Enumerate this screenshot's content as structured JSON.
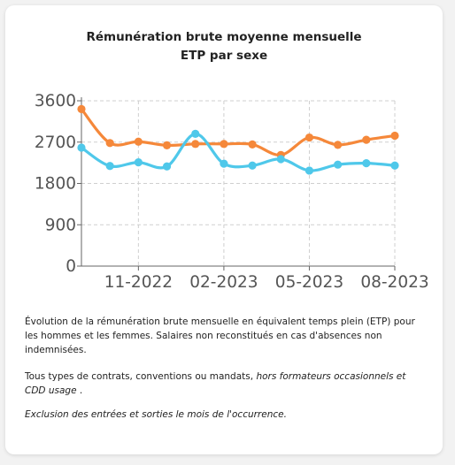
{
  "title": "Rémunération brute moyenne mensuelle",
  "subtitle": "ETP par sexe",
  "description": {
    "para1": "Évolution de la rémunération brute mensuelle en équivalent temps plein (ETP) pour les hommes et les femmes. Salaires non reconstitués en cas d'absences non indemnisées.",
    "para2_normal": "Tous types de contrats, conventions ou mandats, ",
    "para2_italic": "hors formateurs occasionnels et CDD usage",
    "para2_end": " .",
    "para3": "Exclusion des entrées et sorties le mois de l'occurrence."
  },
  "chart_data": {
    "type": "line",
    "x": [
      "2022-09",
      "2022-10",
      "2022-11",
      "2022-12",
      "2023-01",
      "2023-02",
      "2023-03",
      "2023-04",
      "2023-05",
      "2023-06",
      "2023-07",
      "2023-08"
    ],
    "xticks": [
      {
        "label": "11-2022",
        "index": 2
      },
      {
        "label": "02-2023",
        "index": 5
      },
      {
        "label": "05-2023",
        "index": 8
      },
      {
        "label": "08-2023",
        "index": 11
      }
    ],
    "yticks": [
      0,
      900,
      1800,
      2700,
      3600
    ],
    "ylim": [
      0,
      3600
    ],
    "grid": true,
    "series": [
      {
        "color": "#f5883a",
        "values": [
          3420,
          2680,
          2710,
          2630,
          2660,
          2660,
          2650,
          2420,
          2800,
          2640,
          2750,
          2840
        ]
      },
      {
        "color": "#4fc8ea",
        "values": [
          2580,
          2180,
          2260,
          2170,
          2880,
          2230,
          2190,
          2330,
          2080,
          2210,
          2240,
          2190
        ]
      }
    ]
  }
}
